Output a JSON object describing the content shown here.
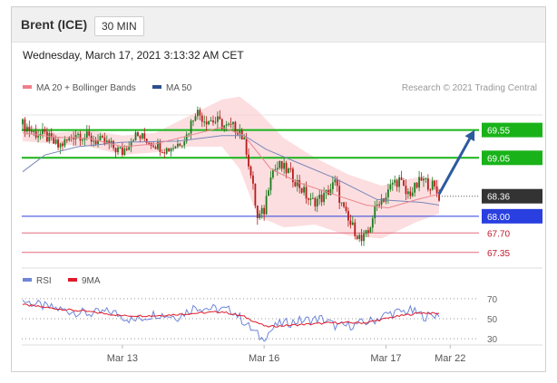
{
  "header": {
    "title": "Brent (ICE)",
    "interval": "30 MIN"
  },
  "timestamp": "Wednesday, March 17, 2021 3:13:32 AM CET",
  "legend": [
    {
      "name": "MA 20 + Bollinger Bands",
      "color": "#f07f8a"
    },
    {
      "name": "MA 50",
      "color": "#2d4f91"
    }
  ],
  "credit": "Research © 2021 Trading Central",
  "rsi_legend": [
    {
      "name": "RSI",
      "color": "#6f86d6"
    },
    {
      "name": "9MA",
      "color": "#e01a2a"
    }
  ],
  "colors": {
    "up": "#1f7a1f",
    "down": "#b71c1c",
    "resistance": "#19b319",
    "support": "#2a3fe0",
    "support_minor": "#e36b7e",
    "last": "#333333",
    "arrow": "#2c5a9e"
  },
  "chart_data": [
    {
      "type": "candlestick",
      "title": "",
      "x_ticks": [
        "Mar 13",
        "Mar 16",
        "Mar 17",
        "Mar 22"
      ],
      "y_range": [
        67.2,
        69.95
      ],
      "last_price": 68.36,
      "levels": [
        {
          "value": 69.55,
          "label": "69.55",
          "kind": "resistance"
        },
        {
          "value": 69.05,
          "label": "69.05",
          "kind": "resistance"
        },
        {
          "value": 68.36,
          "label": "68.36",
          "kind": "last"
        },
        {
          "value": 68.0,
          "label": "68.00",
          "kind": "support"
        },
        {
          "value": 67.7,
          "label": "67.70",
          "kind": "support_minor"
        },
        {
          "value": 67.35,
          "label": "67.35",
          "kind": "support_minor"
        }
      ],
      "close_path": [
        [
          0,
          69.65
        ],
        [
          5,
          69.5
        ],
        [
          10,
          69.45
        ],
        [
          16,
          69.25
        ],
        [
          20,
          69.35
        ],
        [
          24,
          69.5
        ],
        [
          30,
          69.4
        ],
        [
          38,
          69.3
        ],
        [
          45,
          69.15
        ],
        [
          50,
          69.45
        ],
        [
          55,
          69.4
        ],
        [
          60,
          69.3
        ],
        [
          65,
          69.2
        ],
        [
          70,
          69.3
        ],
        [
          74,
          69.45
        ],
        [
          78,
          69.9
        ],
        [
          82,
          69.75
        ],
        [
          88,
          69.7
        ],
        [
          92,
          69.6
        ],
        [
          95,
          69.6
        ],
        [
          98,
          69.55
        ],
        [
          101,
          69.2
        ],
        [
          104,
          68.5
        ],
        [
          106,
          67.95
        ],
        [
          109,
          68.1
        ],
        [
          112,
          68.8
        ],
        [
          116,
          68.9
        ],
        [
          120,
          68.8
        ],
        [
          125,
          68.55
        ],
        [
          130,
          68.25
        ],
        [
          136,
          68.35
        ],
        [
          141,
          68.6
        ],
        [
          144,
          68.2
        ],
        [
          147,
          67.9
        ],
        [
          150,
          67.75
        ],
        [
          153,
          67.55
        ],
        [
          156,
          67.7
        ],
        [
          158,
          68.0
        ],
        [
          161,
          68.3
        ],
        [
          164,
          68.35
        ],
        [
          167,
          68.6
        ],
        [
          170,
          68.65
        ],
        [
          173,
          68.4
        ],
        [
          176,
          68.45
        ],
        [
          180,
          68.65
        ],
        [
          185,
          68.55
        ],
        [
          188,
          68.36
        ]
      ],
      "ma50": [
        [
          0,
          68.8
        ],
        [
          10,
          69.1
        ],
        [
          25,
          69.25
        ],
        [
          45,
          69.33
        ],
        [
          70,
          69.35
        ],
        [
          90,
          69.45
        ],
        [
          100,
          69.45
        ],
        [
          110,
          69.2
        ],
        [
          125,
          68.95
        ],
        [
          140,
          68.7
        ],
        [
          160,
          68.3
        ],
        [
          180,
          68.25
        ],
        [
          188,
          68.2
        ]
      ],
      "ma20": [
        [
          0,
          69.5
        ],
        [
          15,
          69.42
        ],
        [
          30,
          69.4
        ],
        [
          45,
          69.25
        ],
        [
          60,
          69.3
        ],
        [
          75,
          69.45
        ],
        [
          90,
          69.6
        ],
        [
          100,
          69.45
        ],
        [
          112,
          68.85
        ],
        [
          125,
          68.6
        ],
        [
          140,
          68.4
        ],
        [
          155,
          68.2
        ],
        [
          165,
          68.15
        ],
        [
          178,
          68.3
        ],
        [
          188,
          68.4
        ]
      ],
      "bb_upper": [
        [
          0,
          69.65
        ],
        [
          15,
          69.5
        ],
        [
          30,
          69.55
        ],
        [
          45,
          69.45
        ],
        [
          60,
          69.5
        ],
        [
          75,
          69.8
        ],
        [
          90,
          70.1
        ],
        [
          98,
          70.15
        ],
        [
          106,
          69.9
        ],
        [
          118,
          69.4
        ],
        [
          132,
          69.05
        ],
        [
          147,
          68.75
        ],
        [
          162,
          68.55
        ],
        [
          178,
          68.7
        ],
        [
          188,
          68.65
        ]
      ],
      "bb_lower": [
        [
          0,
          69.35
        ],
        [
          15,
          69.3
        ],
        [
          30,
          69.25
        ],
        [
          45,
          69.1
        ],
        [
          60,
          69.15
        ],
        [
          75,
          69.25
        ],
        [
          90,
          69.25
        ],
        [
          98,
          68.85
        ],
        [
          106,
          68.0
        ],
        [
          118,
          67.8
        ],
        [
          132,
          67.85
        ],
        [
          147,
          67.65
        ],
        [
          162,
          67.6
        ],
        [
          178,
          67.9
        ],
        [
          188,
          68.05
        ]
      ],
      "projection": {
        "from": [
          188,
          68.4
        ],
        "to": [
          204,
          69.55
        ]
      }
    },
    {
      "type": "line",
      "title": "RSI",
      "y_range": [
        22,
        78
      ],
      "y_ticks": [
        70,
        50,
        30
      ],
      "rsi_path": [
        [
          0,
          68
        ],
        [
          10,
          62
        ],
        [
          20,
          58
        ],
        [
          30,
          55
        ],
        [
          40,
          57
        ],
        [
          50,
          48
        ],
        [
          60,
          55
        ],
        [
          70,
          52
        ],
        [
          78,
          62
        ],
        [
          85,
          60
        ],
        [
          95,
          58
        ],
        [
          103,
          40
        ],
        [
          108,
          30
        ],
        [
          115,
          44
        ],
        [
          125,
          48
        ],
        [
          135,
          50
        ],
        [
          142,
          42
        ],
        [
          150,
          44
        ],
        [
          158,
          48
        ],
        [
          165,
          55
        ],
        [
          175,
          58
        ],
        [
          182,
          52
        ],
        [
          188,
          55
        ]
      ],
      "ma9_path": [
        [
          0,
          64
        ],
        [
          15,
          60
        ],
        [
          30,
          57
        ],
        [
          45,
          53
        ],
        [
          60,
          53
        ],
        [
          75,
          55
        ],
        [
          90,
          57
        ],
        [
          100,
          52
        ],
        [
          110,
          42
        ],
        [
          125,
          44
        ],
        [
          140,
          46
        ],
        [
          155,
          46
        ],
        [
          168,
          52
        ],
        [
          180,
          56
        ],
        [
          188,
          55
        ]
      ]
    }
  ]
}
